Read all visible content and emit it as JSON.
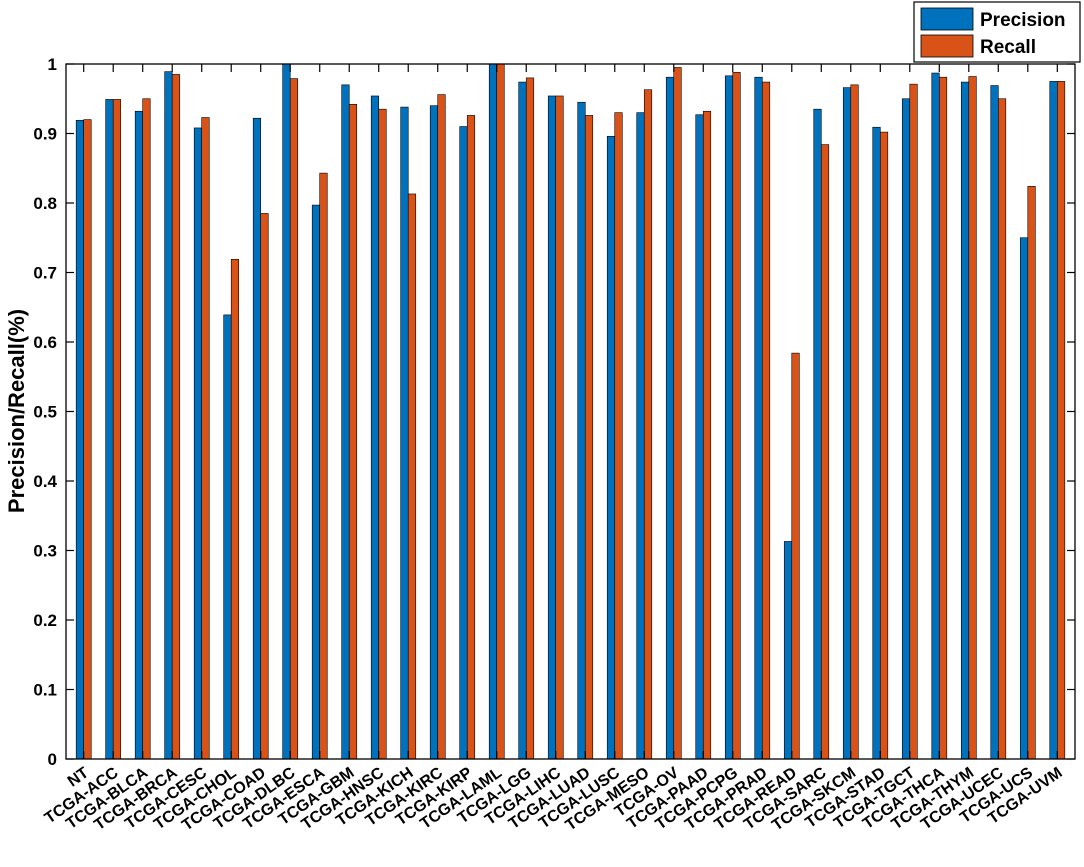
{
  "chart_data": {
    "type": "bar",
    "title": "",
    "xlabel": "",
    "ylabel": "Precision/Recall(%)",
    "ylim": [
      0,
      1
    ],
    "yticks": [
      0,
      0.1,
      0.2,
      0.3,
      0.4,
      0.5,
      0.6,
      0.7,
      0.8,
      0.9,
      1
    ],
    "grid": false,
    "legend_position": "top-right",
    "categories": [
      "NT",
      "TCGA-ACC",
      "TCGA-BLCA",
      "TCGA-BRCA",
      "TCGA-CESC",
      "TCGA-CHOL",
      "TCGA-COAD",
      "TCGA-DLBC",
      "TCGA-ESCA",
      "TCGA-GBM",
      "TCGA-HNSC",
      "TCGA-KICH",
      "TCGA-KIRC",
      "TCGA-KIRP",
      "TCGA-LAML",
      "TCGA-LGG",
      "TCGA-LIHC",
      "TCGA-LUAD",
      "TCGA-LUSC",
      "TCGA-MESO",
      "TCGA-OV",
      "TCGA-PAAD",
      "TCGA-PCPG",
      "TCGA-PRAD",
      "TCGA-READ",
      "TCGA-SARC",
      "TCGA-SKCM",
      "TCGA-STAD",
      "TCGA-TGCT",
      "TCGA-THCA",
      "TCGA-THYM",
      "TCGA-UCEC",
      "TCGA-UCS",
      "TCGA-UVM"
    ],
    "series": [
      {
        "name": "Precision",
        "color": "#0072BD",
        "values": [
          0.919,
          0.949,
          0.932,
          0.989,
          0.908,
          0.639,
          0.922,
          1.0,
          0.797,
          0.97,
          0.954,
          0.938,
          0.94,
          0.91,
          1.0,
          0.974,
          0.954,
          0.945,
          0.896,
          0.93,
          0.981,
          0.927,
          0.983,
          0.981,
          0.313,
          0.935,
          0.966,
          0.909,
          0.95,
          0.987,
          0.974,
          0.969,
          0.75,
          0.975
        ]
      },
      {
        "name": "Recall",
        "color": "#D95319",
        "values": [
          0.92,
          0.949,
          0.95,
          0.985,
          0.923,
          0.719,
          0.785,
          0.979,
          0.843,
          0.942,
          0.935,
          0.813,
          0.956,
          0.926,
          1.0,
          0.98,
          0.954,
          0.926,
          0.93,
          0.963,
          0.995,
          0.932,
          0.988,
          0.974,
          0.584,
          0.884,
          0.97,
          0.902,
          0.971,
          0.981,
          0.982,
          0.95,
          0.824,
          0.975
        ]
      }
    ]
  }
}
